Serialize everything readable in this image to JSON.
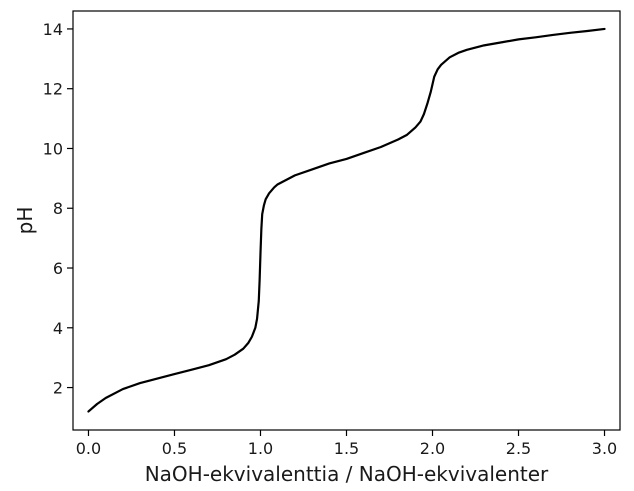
{
  "chart_data": {
    "type": "line",
    "xlabel": "NaOH-ekvivalenttia / NaOH-ekvivalenter",
    "ylabel": "pH",
    "xlim": [
      -0.09,
      3.09
    ],
    "ylim": [
      0.58,
      14.6
    ],
    "xticks": [
      0.0,
      0.5,
      1.0,
      1.5,
      2.0,
      2.5,
      3.0
    ],
    "xtick_labels": [
      "0.0",
      "0.5",
      "1.0",
      "1.5",
      "2.0",
      "2.5",
      "3.0"
    ],
    "yticks": [
      2,
      4,
      6,
      8,
      10,
      12,
      14
    ],
    "ytick_labels": [
      "2",
      "4",
      "6",
      "8",
      "10",
      "12",
      "14"
    ],
    "grid": false,
    "series": [
      {
        "color": "#000000",
        "x": [
          0.0,
          0.05,
          0.1,
          0.2,
          0.3,
          0.4,
          0.5,
          0.6,
          0.7,
          0.8,
          0.85,
          0.9,
          0.93,
          0.95,
          0.97,
          0.98,
          0.99,
          0.995,
          1.0,
          1.005,
          1.01,
          1.02,
          1.03,
          1.05,
          1.08,
          1.1,
          1.15,
          1.2,
          1.3,
          1.4,
          1.5,
          1.6,
          1.7,
          1.8,
          1.85,
          1.9,
          1.93,
          1.95,
          1.97,
          1.99,
          2.0,
          2.01,
          2.03,
          2.05,
          2.08,
          2.1,
          2.15,
          2.2,
          2.3,
          2.4,
          2.5,
          2.6,
          2.7,
          2.8,
          2.9,
          3.0
        ],
        "y": [
          1.2,
          1.45,
          1.65,
          1.95,
          2.15,
          2.3,
          2.45,
          2.6,
          2.75,
          2.95,
          3.1,
          3.3,
          3.5,
          3.7,
          4.0,
          4.3,
          4.9,
          5.6,
          6.5,
          7.3,
          7.8,
          8.1,
          8.3,
          8.5,
          8.7,
          8.8,
          8.95,
          9.1,
          9.3,
          9.5,
          9.65,
          9.85,
          10.05,
          10.3,
          10.45,
          10.7,
          10.9,
          11.15,
          11.5,
          11.9,
          12.15,
          12.4,
          12.65,
          12.8,
          12.95,
          13.05,
          13.2,
          13.3,
          13.45,
          13.55,
          13.65,
          13.72,
          13.8,
          13.87,
          13.93,
          14.0
        ]
      }
    ]
  }
}
